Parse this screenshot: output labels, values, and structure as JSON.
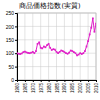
{
  "chart_data": {
    "type": "line",
    "title": "商品価格指数(実質)",
    "x": [
      1960,
      1961,
      1962,
      1963,
      1964,
      1965,
      1966,
      1967,
      1968,
      1969,
      1970,
      1971,
      1972,
      1973,
      1974,
      1975,
      1976,
      1977,
      1978,
      1979,
      1980,
      1981,
      1982,
      1983,
      1984,
      1985,
      1986,
      1987,
      1988,
      1989,
      1990,
      1991,
      1992,
      1993,
      1994,
      1995,
      1996,
      1997,
      1998,
      1999,
      2000,
      2001,
      2002,
      2003,
      2004,
      2005,
      2006,
      2007,
      2008,
      2009,
      2010
    ],
    "values": [
      100,
      98,
      97,
      99,
      104,
      106,
      103,
      101,
      100,
      102,
      105,
      100,
      108,
      135,
      140,
      120,
      118,
      125,
      122,
      130,
      135,
      120,
      112,
      115,
      113,
      105,
      100,
      105,
      110,
      108,
      104,
      100,
      98,
      102,
      110,
      108,
      104,
      100,
      92,
      95,
      100,
      97,
      100,
      108,
      125,
      145,
      170,
      195,
      230,
      180,
      210
    ],
    "color": "#e020c8",
    "marker": "square",
    "xlim": [
      1960,
      2010
    ],
    "xticks": [
      1960,
      1965,
      1970,
      1975,
      1980,
      1985,
      1990,
      1995,
      2000,
      2005,
      2010
    ],
    "ylim": [
      0,
      250
    ],
    "yticks": [
      0,
      50,
      100,
      150,
      200,
      250
    ],
    "grid": true
  }
}
